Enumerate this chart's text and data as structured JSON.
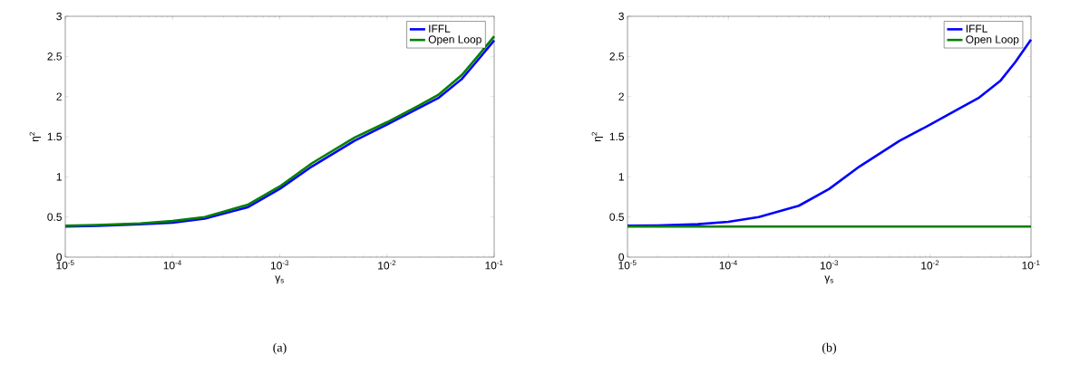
{
  "chart_data": [
    {
      "type": "line",
      "xlabel": "γ$_{s}$",
      "ylabel": "η$^{2}$",
      "log": "x",
      "legend": "top right",
      "grid": false,
      "line_style": "solid",
      "marker": "none",
      "xlim": [
        1e-05,
        0.1
      ],
      "ylim": [
        0,
        3
      ],
      "xticks": [
        {
          "value": 1e-05,
          "label": "10$^{-5}$"
        },
        {
          "value": 0.0001,
          "label": "10$^{-4}$"
        },
        {
          "value": 0.001,
          "label": "10$^{-3}$"
        },
        {
          "value": 0.01,
          "label": "10$^{-2}$"
        },
        {
          "value": 0.1,
          "label": "10$^{-1}$"
        }
      ],
      "yticks": [
        0,
        0.5,
        1,
        1.5,
        2,
        2.5,
        3
      ],
      "x": [
        1e-05,
        2e-05,
        5e-05,
        0.0001,
        0.0002,
        0.0005,
        0.001,
        0.002,
        0.005,
        0.01,
        0.02,
        0.03,
        0.05,
        0.07,
        0.1
      ],
      "series": [
        {
          "name": "IFFL",
          "color": "#0000ff",
          "values": [
            0.38,
            0.39,
            0.41,
            0.43,
            0.48,
            0.62,
            0.85,
            1.13,
            1.45,
            1.65,
            1.86,
            1.98,
            2.22,
            2.45,
            2.7
          ]
        },
        {
          "name": "Open Loop",
          "color": "#008000",
          "values": [
            0.39,
            0.4,
            0.42,
            0.45,
            0.5,
            0.65,
            0.88,
            1.17,
            1.49,
            1.68,
            1.89,
            2.02,
            2.27,
            2.5,
            2.75
          ]
        }
      ],
      "annotations": [
        "(a)"
      ]
    },
    {
      "type": "line",
      "xlabel": "γ$_{s}$",
      "ylabel": "η$^{2}$",
      "log": "x",
      "legend": "top right",
      "grid": false,
      "line_style": "solid",
      "marker": "none",
      "xlim": [
        1e-05,
        0.1
      ],
      "ylim": [
        0,
        3
      ],
      "xticks": [
        {
          "value": 1e-05,
          "label": "10$^{-5}$"
        },
        {
          "value": 0.0001,
          "label": "10$^{-4}$"
        },
        {
          "value": 0.001,
          "label": "10$^{-3}$"
        },
        {
          "value": 0.01,
          "label": "10$^{-2}$"
        },
        {
          "value": 0.1,
          "label": "10$^{-1}$"
        }
      ],
      "yticks": [
        0,
        0.5,
        1,
        1.5,
        2,
        2.5,
        3
      ],
      "series": [
        {
          "name": "IFFL",
          "color": "#0000ff",
          "x": [
            1e-05,
            2e-05,
            5e-05,
            0.0001,
            0.0002,
            0.0005,
            0.001,
            0.002,
            0.005,
            0.01,
            0.02,
            0.03,
            0.05,
            0.07,
            0.1
          ],
          "values": [
            0.39,
            0.395,
            0.41,
            0.44,
            0.5,
            0.64,
            0.85,
            1.13,
            1.45,
            1.65,
            1.86,
            1.98,
            2.2,
            2.43,
            2.71
          ]
        },
        {
          "name": "Open Loop",
          "color": "#008000",
          "x": [
            1e-05,
            0.1
          ],
          "values": [
            0.38,
            0.38
          ]
        }
      ],
      "annotations": [
        "(b)"
      ]
    }
  ]
}
